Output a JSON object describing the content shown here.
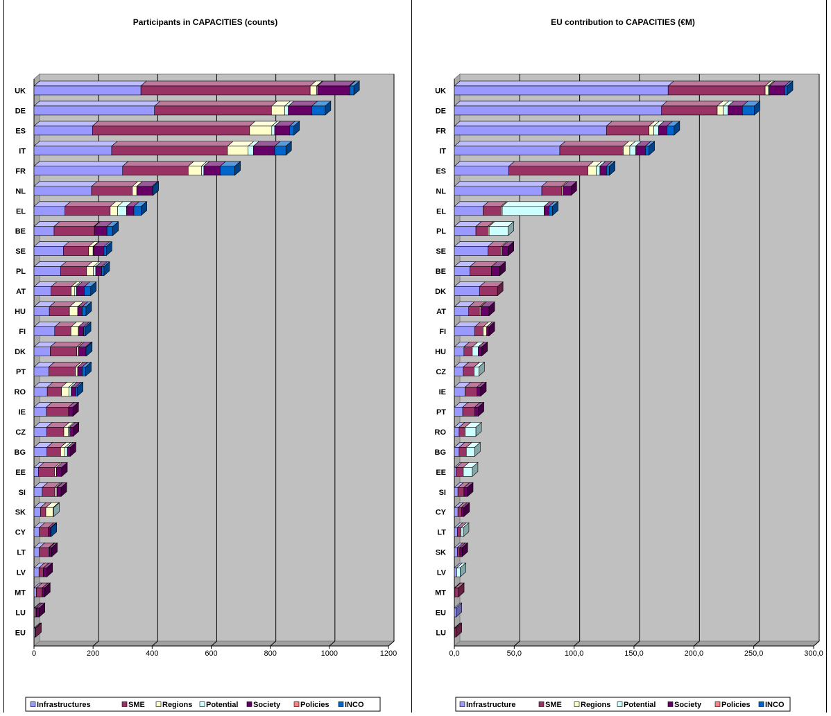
{
  "colors": {
    "Infrastructures": "#9999ff",
    "SME": "#993366",
    "Regions": "#ffffcc",
    "Potential": "#ccffff",
    "Society": "#660066",
    "Policies": "#ff8080",
    "INCO": "#0066cc",
    "plot_bg": "#c0c0c0",
    "border": "#000000"
  },
  "chart_data": [
    {
      "type": "bar",
      "orientation": "horizontal",
      "stacked": true,
      "title": "Participants in CAPACITIES (counts)",
      "xlim": [
        0,
        1200
      ],
      "xticks": [
        0,
        200,
        400,
        600,
        800,
        1000,
        1200
      ],
      "xtick_labels": [
        "0",
        "200",
        "400",
        "600",
        "800",
        "1000",
        "1200"
      ],
      "grid": true,
      "legend_position": "bottom",
      "categories": [
        "UK",
        "DE",
        "ES",
        "IT",
        "FR",
        "NL",
        "EL",
        "BE",
        "SE",
        "PL",
        "AT",
        "HU",
        "FI",
        "DK",
        "PT",
        "RO",
        "IE",
        "CZ",
        "BG",
        "EE",
        "SI",
        "SK",
        "CY",
        "LT",
        "LV",
        "MT",
        "LU",
        "EU"
      ],
      "series": [
        {
          "name": "Infrastructures",
          "color_key": "Infrastructures",
          "values": [
            362,
            408,
            198,
            263,
            300,
            195,
            105,
            68,
            100,
            90,
            58,
            52,
            70,
            55,
            50,
            45,
            42,
            43,
            44,
            15,
            28,
            22,
            18,
            18,
            17,
            8,
            3,
            4
          ]
        },
        {
          "name": "SME",
          "color_key": "SME",
          "values": [
            573,
            396,
            532,
            392,
            222,
            138,
            153,
            135,
            85,
            88,
            68,
            68,
            55,
            90,
            90,
            48,
            75,
            58,
            46,
            55,
            42,
            18,
            30,
            32,
            15,
            20,
            5,
            2
          ]
        },
        {
          "name": "Regions",
          "color_key": "Regions",
          "values": [
            22,
            45,
            75,
            70,
            45,
            15,
            25,
            2,
            15,
            23,
            12,
            28,
            25,
            5,
            8,
            25,
            0,
            15,
            15,
            6,
            5,
            25,
            0,
            0,
            0,
            0,
            0,
            0
          ]
        },
        {
          "name": "Potential",
          "color_key": "Potential",
          "values": [
            3,
            12,
            10,
            18,
            8,
            0,
            30,
            0,
            2,
            8,
            6,
            0,
            0,
            0,
            0,
            8,
            0,
            5,
            8,
            0,
            3,
            2,
            0,
            2,
            0,
            0,
            0,
            0
          ]
        },
        {
          "name": "Society",
          "color_key": "Society",
          "values": [
            107,
            80,
            50,
            72,
            55,
            52,
            25,
            42,
            35,
            20,
            26,
            15,
            18,
            25,
            15,
            15,
            15,
            12,
            10,
            18,
            14,
            0,
            8,
            8,
            12,
            8,
            10,
            0
          ]
        },
        {
          "name": "Policies",
          "color_key": "Policies",
          "values": [
            2,
            0,
            0,
            0,
            0,
            0,
            0,
            0,
            0,
            0,
            0,
            0,
            0,
            0,
            0,
            0,
            0,
            0,
            0,
            0,
            0,
            0,
            0,
            0,
            0,
            0,
            0,
            0
          ]
        },
        {
          "name": "INCO",
          "color_key": "INCO",
          "values": [
            14,
            45,
            15,
            38,
            50,
            3,
            25,
            20,
            8,
            8,
            22,
            13,
            6,
            3,
            12,
            6,
            0,
            0,
            0,
            0,
            0,
            0,
            2,
            0,
            0,
            0,
            0,
            0
          ]
        }
      ]
    },
    {
      "type": "bar",
      "orientation": "horizontal",
      "stacked": true,
      "title": "EU contribution to CAPACITIES (€M)",
      "xlim": [
        0,
        300
      ],
      "xticks": [
        0,
        50,
        100,
        150,
        200,
        250,
        300
      ],
      "xtick_labels": [
        "0,0",
        "50,0",
        "100,0",
        "150,0",
        "200,0",
        "250,0",
        "300,0"
      ],
      "grid": true,
      "legend_position": "bottom",
      "categories": [
        "UK",
        "DE",
        "FR",
        "IT",
        "ES",
        "NL",
        "EL",
        "PL",
        "SE",
        "BE",
        "DK",
        "AT",
        "FI",
        "HU",
        "CZ",
        "IE",
        "PT",
        "RO",
        "BG",
        "EE",
        "SI",
        "CY",
        "LT",
        "SK",
        "LV",
        "MT",
        "EU",
        "LU"
      ],
      "series": [
        {
          "name": "Infrastructure",
          "color_key": "Infrastructures",
          "values": [
            178.5,
            173,
            127,
            88,
            45.5,
            73,
            24,
            18,
            28,
            13,
            21,
            12,
            17,
            8,
            7.5,
            9,
            7,
            4,
            4,
            1.5,
            3,
            3,
            2.5,
            2.5,
            2,
            0.5,
            1.5,
            0.5
          ]
        },
        {
          "name": "SME",
          "color_key": "SME",
          "values": [
            81,
            46.5,
            35.5,
            53,
            66,
            16.5,
            15,
            10,
            11,
            18,
            15,
            9,
            7,
            7,
            9,
            10,
            10,
            5,
            6,
            6,
            5,
            3,
            3,
            2,
            0,
            3,
            0,
            1
          ]
        },
        {
          "name": "Regions",
          "color_key": "Regions",
          "values": [
            2.5,
            5,
            4,
            5.5,
            7,
            1,
            1,
            1,
            1,
            0,
            0,
            1,
            3,
            0,
            0,
            0,
            0,
            0,
            0,
            0,
            0,
            0,
            0,
            0,
            0,
            0,
            0,
            0
          ]
        },
        {
          "name": "Potential",
          "color_key": "Potential",
          "values": [
            1,
            4,
            4,
            5,
            3,
            0,
            35,
            16,
            0,
            0,
            0,
            0,
            0,
            5,
            4,
            0,
            0,
            9,
            7,
            7.5,
            0,
            0,
            2,
            0,
            3,
            0,
            0,
            0
          ]
        },
        {
          "name": "Society",
          "color_key": "Society",
          "values": [
            13,
            12,
            7,
            8,
            5.5,
            7,
            4,
            0,
            5,
            7,
            0,
            7,
            2,
            3,
            0,
            3,
            3,
            0,
            0,
            0,
            3,
            2,
            0,
            2,
            0,
            0,
            0,
            0
          ]
        },
        {
          "name": "Policies",
          "color_key": "Policies",
          "values": [
            0,
            0,
            0,
            0,
            0,
            0,
            0,
            0,
            0,
            0,
            0,
            0,
            0,
            0,
            0,
            0,
            0,
            0,
            0,
            0,
            0,
            0,
            0,
            0,
            0,
            0,
            0,
            0
          ]
        },
        {
          "name": "INCO",
          "color_key": "INCO",
          "values": [
            2,
            10,
            6,
            3,
            2.5,
            0,
            3,
            0,
            0,
            0,
            0,
            0,
            0,
            0,
            0,
            0,
            0,
            0,
            0,
            0,
            0,
            0,
            0,
            0,
            0,
            0,
            0,
            0
          ]
        }
      ]
    }
  ]
}
